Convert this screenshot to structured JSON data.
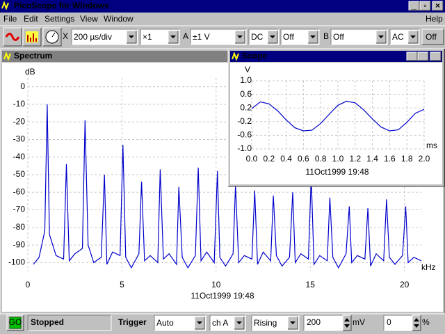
{
  "window": {
    "title": "PicoScope for Windows"
  },
  "menu": [
    "File",
    "Edit",
    "Settings",
    "View",
    "Window",
    "Help"
  ],
  "toolbar": {
    "x_label": "X",
    "timebase": "200 µs/div",
    "multiplier": "×1",
    "channel_a_label": "A",
    "channel_a_range": "±1 V",
    "channel_a_coupling": "DC",
    "channel_a_option": "Off",
    "channel_b_label": "B",
    "channel_b_range": "Off",
    "channel_b_coupling": "AC",
    "channel_b_option": "Off"
  },
  "chart_data": [
    {
      "type": "line",
      "window_title": "Spectrum",
      "y_label": "dB",
      "x_label": "kHz",
      "timestamp": "11Oct1999  19:48",
      "color": "#0000cc",
      "grid": true,
      "xlim": [
        0,
        20.9
      ],
      "ylim": [
        -105,
        5
      ],
      "xticks": [
        0,
        5,
        10,
        15,
        20
      ],
      "yticks": [
        0,
        -10,
        -20,
        -30,
        -40,
        -50,
        -60,
        -70,
        -80,
        -90,
        -100
      ],
      "x": [
        0.3,
        0.6,
        0.9,
        1.03,
        1.15,
        1.5,
        1.9,
        2.05,
        2.2,
        2.5,
        2.9,
        3.04,
        3.2,
        3.5,
        3.9,
        4.07,
        4.2,
        4.5,
        4.9,
        5.05,
        5.2,
        5.5,
        5.9,
        6.04,
        6.2,
        6.5,
        6.9,
        7.03,
        7.2,
        7.5,
        7.9,
        8.02,
        8.2,
        8.5,
        8.9,
        9.05,
        9.2,
        9.5,
        9.9,
        10.07,
        10.2,
        10.5,
        10.9,
        11.03,
        11.2,
        11.5,
        11.9,
        12.05,
        12.2,
        12.5,
        12.9,
        13.04,
        13.2,
        13.5,
        13.9,
        14.07,
        14.2,
        14.5,
        14.9,
        15.05,
        15.2,
        15.5,
        15.9,
        16.04,
        16.2,
        16.5,
        16.9,
        17.07,
        17.2,
        17.5,
        17.9,
        18.06,
        18.2,
        18.5,
        18.9,
        19.05,
        19.2,
        19.5,
        19.9,
        20.07,
        20.2,
        20.5,
        20.9
      ],
      "values": [
        -101,
        -97,
        -82,
        -10,
        -84,
        -96,
        -98,
        -44,
        -99,
        -95,
        -92,
        -19,
        -90,
        -100,
        -97,
        -50,
        -101,
        -94,
        -96,
        -33,
        -97,
        -103,
        -95,
        -54,
        -99,
        -96,
        -100,
        -47,
        -98,
        -95,
        -101,
        -57,
        -97,
        -103,
        -96,
        -46,
        -99,
        -94,
        -100,
        -48,
        -97,
        -102,
        -95,
        -56,
        -100,
        -96,
        -98,
        -59,
        -101,
        -94,
        -99,
        -62,
        -96,
        -102,
        -97,
        -60,
        -100,
        -95,
        -98,
        -51,
        -101,
        -96,
        -99,
        -63,
        -97,
        -103,
        -95,
        -68,
        -100,
        -96,
        -98,
        -69,
        -102,
        -95,
        -99,
        -64,
        -97,
        -101,
        -96,
        -68,
        -100,
        -97,
        -99
      ]
    },
    {
      "type": "line",
      "window_title": "Scope",
      "y_label": "V",
      "x_label": "ms",
      "timestamp": "11Oct1999  19:48",
      "color": "#0000cc",
      "grid": true,
      "xlim": [
        0,
        2
      ],
      "ylim": [
        -1,
        1
      ],
      "xticks": [
        {
          "value": 0,
          "label": "0.0"
        },
        0.2,
        0.4,
        0.6,
        0.8,
        {
          "value": 1,
          "label": "1.0"
        },
        1.2,
        1.4,
        1.6,
        1.8,
        {
          "value": 2,
          "label": "2.0"
        }
      ],
      "yticks": [
        {
          "value": 1,
          "label": "1.0"
        },
        0.6,
        0.2,
        -0.2,
        -0.6,
        {
          "value": -1,
          "label": "-1.0"
        }
      ],
      "x": [
        0,
        0.1,
        0.2,
        0.3,
        0.4,
        0.5,
        0.6,
        0.7,
        0.8,
        0.9,
        1,
        1.1,
        1.2,
        1.3,
        1.4,
        1.5,
        1.6,
        1.7,
        1.8,
        1.9,
        2
      ],
      "values": [
        0.18,
        0.38,
        0.32,
        0.12,
        -0.15,
        -0.38,
        -0.47,
        -0.45,
        -0.25,
        0.02,
        0.28,
        0.4,
        0.35,
        0.14,
        -0.12,
        -0.36,
        -0.47,
        -0.44,
        -0.22,
        0.05,
        0.16
      ]
    }
  ],
  "status": {
    "go": "GO",
    "state": "Stopped",
    "trigger_label": "Trigger",
    "trigger_mode": "Auto",
    "trigger_channel": "ch A",
    "trigger_edge": "Rising",
    "threshold": "200",
    "threshold_unit": "mV",
    "delay": "0",
    "delay_unit": "%"
  }
}
